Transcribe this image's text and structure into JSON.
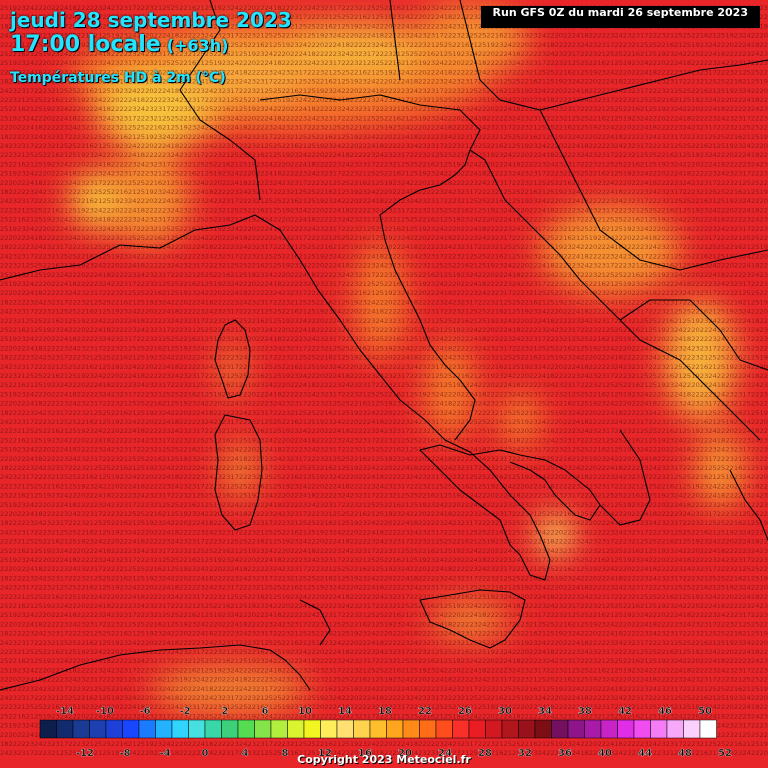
{
  "header": {
    "date_line": "jeudi 28 septembre 2023",
    "time_line": "17:00 locale",
    "lead_time": "(+63h)",
    "parameter": "Températures HD à 2m (°C)"
  },
  "run_info": "Run GFS 0Z du mardi 26 septembre 2023",
  "copyright": "Copyright 2023 Meteociel.fr",
  "legend": {
    "top_labels": [
      "-14",
      "-10",
      "-6",
      "-2",
      "2",
      "6",
      "10",
      "14",
      "18",
      "22",
      "26",
      "30",
      "34",
      "38",
      "42",
      "46",
      "50"
    ],
    "bottom_labels": [
      "-12",
      "-8",
      "-4",
      "0",
      "4",
      "8",
      "12",
      "16",
      "20",
      "24",
      "28",
      "32",
      "36",
      "40",
      "44",
      "48",
      "52"
    ],
    "colors": [
      "#0d1d4c",
      "#122a6e",
      "#1a3b94",
      "#1d3fb0",
      "#1d40d8",
      "#1947ff",
      "#1a7bff",
      "#24b2ff",
      "#31d4ff",
      "#46e0e0",
      "#39d6a8",
      "#3bd079",
      "#55dc52",
      "#85e44a",
      "#b2ee3e",
      "#daf52f",
      "#f3f520",
      "#ffee5a",
      "#ffe070",
      "#ffd34e",
      "#ffbf2c",
      "#ffa61e",
      "#ff8a1a",
      "#ff6d19",
      "#ff4d1e",
      "#f9302a",
      "#ea1d22",
      "#d21820",
      "#b2161d",
      "#97121a",
      "#7d0f14",
      "#741060",
      "#8e148a",
      "#a81aa8",
      "#c624c6",
      "#e02ee6",
      "#f04cf0",
      "#f47cf4",
      "#f8a8f8",
      "#fcd0fc",
      "#ffffff"
    ]
  },
  "map": {
    "base_color": "#e8262a",
    "warm_color": "#f5792a",
    "hot_color": "#f7c23a",
    "cool_color": "#ef4a22",
    "grid_values": [
      "25",
      "24",
      "23",
      "22",
      "22",
      "23",
      "21",
      "19",
      "18",
      "17",
      "16",
      "20",
      "24",
      "25",
      "23",
      "22",
      "22",
      "21",
      "22",
      "23",
      "25",
      "24",
      "22",
      "23"
    ]
  }
}
